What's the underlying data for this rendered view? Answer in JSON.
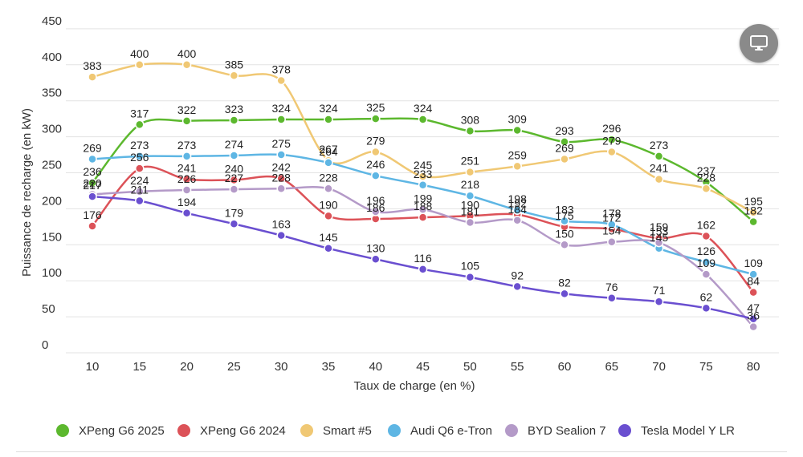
{
  "chart_data": {
    "type": "line",
    "xlabel": "Taux de charge (en %)",
    "ylabel": "Puissance de recharge (en kW)",
    "x": [
      10,
      15,
      20,
      25,
      30,
      35,
      40,
      45,
      50,
      55,
      60,
      65,
      70,
      75,
      80
    ],
    "y_ticks": [
      0,
      50,
      100,
      150,
      200,
      250,
      300,
      350,
      400,
      450
    ],
    "ylim": [
      0,
      450
    ],
    "grid": true,
    "legend_position": "bottom",
    "series": [
      {
        "name": "XPeng G6 2025",
        "color": "#5cb82e",
        "values": [
          236,
          317,
          322,
          323,
          324,
          324,
          325,
          324,
          308,
          309,
          293,
          296,
          273,
          237,
          182
        ]
      },
      {
        "name": "XPeng G6 2024",
        "color": "#dc5258",
        "values": [
          176,
          256,
          241,
          240,
          242,
          190,
          186,
          188,
          190,
          192,
          175,
          172,
          159,
          162,
          84
        ]
      },
      {
        "name": "Smart #5",
        "color": "#f0c874",
        "values": [
          383,
          400,
          400,
          385,
          378,
          267,
          279,
          245,
          251,
          259,
          269,
          279,
          241,
          228,
          195
        ]
      },
      {
        "name": "Audi Q6 e-Tron",
        "color": "#5eb6e4",
        "values": [
          269,
          273,
          273,
          274,
          275,
          264,
          246,
          233,
          218,
          198,
          183,
          178,
          145,
          126,
          109
        ]
      },
      {
        "name": "BYD Sealion 7",
        "color": "#b49ac8",
        "values": [
          220,
          224,
          226,
          227,
          228,
          228,
          196,
          199,
          181,
          184,
          150,
          154,
          153,
          109,
          36
        ]
      },
      {
        "name": "Tesla Model Y LR",
        "color": "#6a4fd0",
        "values": [
          217,
          211,
          194,
          179,
          163,
          145,
          130,
          116,
          105,
          92,
          82,
          76,
          71,
          62,
          47
        ]
      }
    ]
  }
}
